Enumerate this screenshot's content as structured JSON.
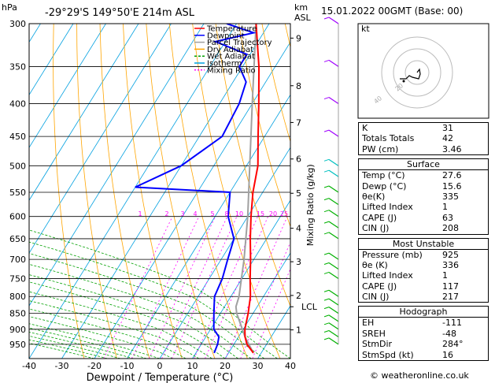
{
  "header": {
    "units_p": "hPa",
    "location": "-29°29'S 149°50'E 214m ASL",
    "units_km": "km",
    "units_asl": "ASL",
    "datetime": "15.01.2022 00GMT (Base: 00)"
  },
  "chart_data": {
    "type": "skew-t",
    "xlabel": "Dewpoint / Temperature (°C)",
    "ylabel_right": "Mixing Ratio (g/kg)",
    "x_ticks": [
      -40,
      -30,
      -20,
      -10,
      0,
      10,
      20,
      30,
      40
    ],
    "p_ticks": [
      300,
      350,
      400,
      450,
      500,
      550,
      600,
      650,
      700,
      750,
      800,
      850,
      900,
      950
    ],
    "km_ticks": [
      {
        "km": "9",
        "p": 316
      },
      {
        "km": "8",
        "p": 375
      },
      {
        "km": "7",
        "p": 428
      },
      {
        "km": "6",
        "p": 488
      },
      {
        "km": "5",
        "p": 552
      },
      {
        "km": "4",
        "p": 626
      },
      {
        "km": "3",
        "p": 706
      },
      {
        "km": "2",
        "p": 797
      },
      {
        "km": "LCL",
        "p": 830
      },
      {
        "km": "1",
        "p": 902
      }
    ],
    "mixing_ratio_labels": [
      "1",
      "2",
      "3",
      "4",
      "5",
      "8",
      "10",
      "15",
      "20",
      "25"
    ],
    "legend": [
      "Temperature",
      "Dewpoint",
      "Parcel Trajectory",
      "Dry Adiabat",
      "Wet Adiabat",
      "Isotherm",
      "Mixing Ratio"
    ],
    "colors": {
      "temperature": "#ff0000",
      "dewpoint": "#0000ff",
      "parcel": "#a0a0a0",
      "dry_adiabat": "#ffa500",
      "wet_adiabat": "#00a000",
      "isotherm": "#00a0e0",
      "mixing_ratio": "#ff00ff"
    },
    "temperature": [
      [
        980,
        27.6
      ],
      [
        950,
        24
      ],
      [
        925,
        22
      ],
      [
        900,
        20.5
      ],
      [
        850,
        18.5
      ],
      [
        800,
        16
      ],
      [
        750,
        12.5
      ],
      [
        700,
        9
      ],
      [
        650,
        5
      ],
      [
        600,
        1
      ],
      [
        550,
        -3
      ],
      [
        500,
        -6.5
      ],
      [
        450,
        -12
      ],
      [
        400,
        -18
      ],
      [
        350,
        -25
      ],
      [
        300,
        -34
      ]
    ],
    "dewpoint": [
      [
        980,
        15.6
      ],
      [
        950,
        15
      ],
      [
        925,
        14
      ],
      [
        900,
        11
      ],
      [
        850,
        8
      ],
      [
        800,
        5
      ],
      [
        750,
        4
      ],
      [
        700,
        2
      ],
      [
        650,
        0
      ],
      [
        600,
        -6
      ],
      [
        550,
        -10
      ],
      [
        540,
        -40
      ],
      [
        500,
        -30
      ],
      [
        450,
        -23
      ],
      [
        400,
        -24
      ],
      [
        370,
        -26
      ],
      [
        350,
        -31
      ],
      [
        335,
        -31
      ],
      [
        320,
        -43
      ],
      [
        310,
        -33
      ],
      [
        300,
        -43
      ]
    ],
    "parcel": [
      [
        980,
        27.6
      ],
      [
        925,
        22
      ],
      [
        850,
        15
      ],
      [
        830,
        13.5
      ],
      [
        800,
        12.5
      ],
      [
        700,
        7
      ],
      [
        600,
        0
      ],
      [
        500,
        -9
      ],
      [
        400,
        -20
      ],
      [
        300,
        -34
      ]
    ]
  },
  "indices": [
    {
      "label": "K",
      "value": "31"
    },
    {
      "label": "Totals Totals",
      "value": "42"
    },
    {
      "label": "PW (cm)",
      "value": "3.46"
    }
  ],
  "surface": {
    "title": "Surface",
    "rows": [
      {
        "label": "Temp (°C)",
        "value": "27.6"
      },
      {
        "label": "Dewp (°C)",
        "value": "15.6"
      },
      {
        "label": "θe(K)",
        "value": "335"
      },
      {
        "label": "Lifted Index",
        "value": "1"
      },
      {
        "label": "CAPE (J)",
        "value": "63"
      },
      {
        "label": "CIN (J)",
        "value": "208"
      }
    ]
  },
  "most_unstable": {
    "title": "Most Unstable",
    "rows": [
      {
        "label": "Pressure (mb)",
        "value": "925"
      },
      {
        "label": "θe (K)",
        "value": "336"
      },
      {
        "label": "Lifted Index",
        "value": "1"
      },
      {
        "label": "CAPE (J)",
        "value": "117"
      },
      {
        "label": "CIN (J)",
        "value": "217"
      }
    ]
  },
  "hodograph_table": {
    "title": "Hodograph",
    "rows": [
      {
        "label": "EH",
        "value": "-111"
      },
      {
        "label": "SREH",
        "value": "-48"
      },
      {
        "label": "StmDir",
        "value": "284°"
      },
      {
        "label": "StmSpd (kt)",
        "value": "16"
      }
    ]
  },
  "hodograph_plot": {
    "label": "kt",
    "ring_labels": [
      "20",
      "40"
    ]
  },
  "credit": "© weatheronline.co.uk"
}
